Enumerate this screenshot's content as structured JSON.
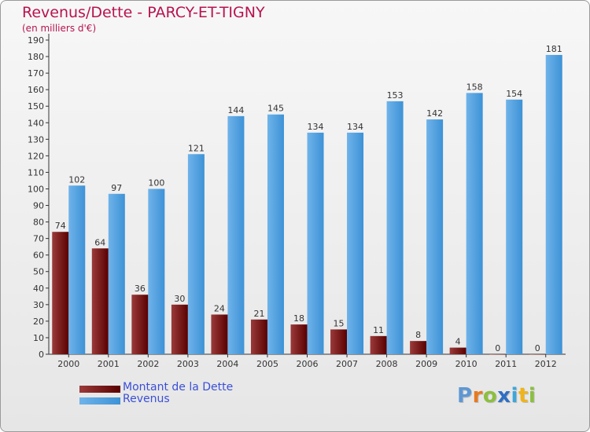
{
  "title": "Revenus/Dette - PARCY-ET-TIGNY",
  "subtitle": "(en milliers d'€)",
  "logo_text": "Proxiti",
  "colors": {
    "debt_top": "#9b3a3a",
    "debt_bottom": "#5a0000",
    "revenue_top": "#6fb3ea",
    "revenue_bottom": "#3d92d6",
    "title": "#b8134f",
    "legend_text": "#3b4fd8"
  },
  "chart_data": {
    "type": "bar",
    "title": "Revenus/Dette - PARCY-ET-TIGNY",
    "ylabel": "(en milliers d'€)",
    "xlabel": "",
    "ylim": [
      0,
      190
    ],
    "ytick_step": 10,
    "grid": false,
    "categories": [
      "2000",
      "2001",
      "2002",
      "2003",
      "2004",
      "2005",
      "2006",
      "2007",
      "2008",
      "2009",
      "2010",
      "2011",
      "2012"
    ],
    "series": [
      {
        "name": "Montant de la Dette",
        "values": [
          74,
          64,
          36,
          30,
          24,
          21,
          18,
          15,
          11,
          8,
          4,
          0,
          0
        ]
      },
      {
        "name": "Revenus",
        "values": [
          102,
          97,
          100,
          121,
          144,
          145,
          134,
          134,
          153,
          142,
          158,
          154,
          181
        ]
      }
    ],
    "legend": [
      "Montant de la Dette",
      "Revenus"
    ],
    "legend_position": "bottom-left"
  }
}
